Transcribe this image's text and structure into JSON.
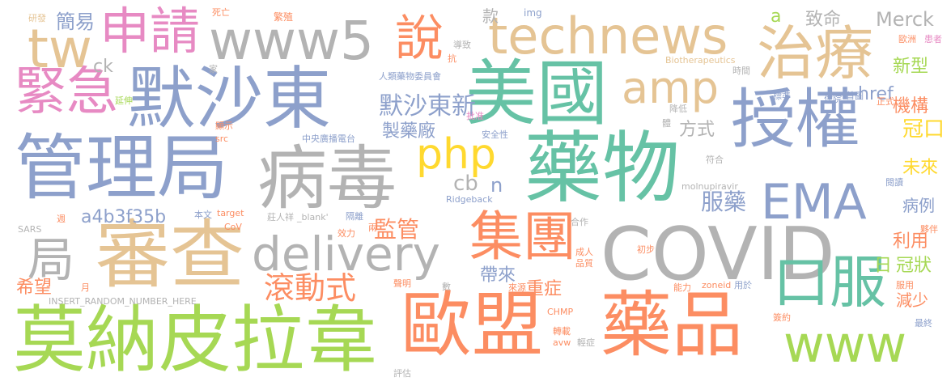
{
  "palette": {
    "green": "#66c2a5",
    "orange": "#fc8d62",
    "blue": "#8da0cb",
    "pink": "#e78ac3",
    "lime": "#a6d854",
    "yellow": "#ffd92f",
    "tan": "#e5c494",
    "gray": "#b3b3b3"
  },
  "words": [
    {
      "text": "COVID"
    },
    {
      "text": "藥物"
    },
    {
      "text": "授權"
    },
    {
      "text": "美國"
    },
    {
      "text": "默沙東"
    },
    {
      "text": "管理局"
    },
    {
      "text": "病毒"
    },
    {
      "text": "莫納皮拉韋"
    },
    {
      "text": "歐盟"
    },
    {
      "text": "藥品"
    },
    {
      "text": "審查"
    },
    {
      "text": "technews"
    },
    {
      "text": "www5"
    },
    {
      "text": "集團"
    },
    {
      "text": "口服"
    },
    {
      "text": "delivery"
    },
    {
      "text": "治療"
    },
    {
      "text": "EMA"
    },
    {
      "text": "www"
    },
    {
      "text": "申請"
    },
    {
      "text": "緊急"
    },
    {
      "text": "tw"
    },
    {
      "text": "amp"
    },
    {
      "text": "php"
    },
    {
      "text": "說"
    },
    {
      "text": "局"
    },
    {
      "text": "滾動式"
    },
    {
      "text": "默沙東新"
    },
    {
      "text": "a4b3f35b"
    },
    {
      "text": "服藥"
    },
    {
      "text": "監管"
    },
    {
      "text": "冠口"
    },
    {
      "text": "Merck"
    },
    {
      "text": "製藥廠"
    },
    {
      "text": "簡易"
    },
    {
      "text": "新型"
    },
    {
      "text": "機構"
    },
    {
      "text": "致命"
    },
    {
      "text": "href"
    },
    {
      "text": "方式"
    },
    {
      "text": "未來"
    },
    {
      "text": "病例"
    },
    {
      "text": "利用"
    },
    {
      "text": "冠狀"
    },
    {
      "text": "日"
    },
    {
      "text": "減少"
    },
    {
      "text": "重症"
    },
    {
      "text": "帶來"
    },
    {
      "text": "希望"
    },
    {
      "text": "cb"
    },
    {
      "text": "n"
    },
    {
      "text": "款"
    },
    {
      "text": "a"
    },
    {
      "text": "ck"
    },
    {
      "text": "img"
    },
    {
      "text": "研發"
    },
    {
      "text": "死亡"
    },
    {
      "text": "繁殖"
    },
    {
      "text": "導致"
    },
    {
      "text": "抗"
    },
    {
      "text": "家"
    },
    {
      "text": "延伸"
    },
    {
      "text": "人類藥物委員會"
    },
    {
      "text": "Biotherapeutics"
    },
    {
      "text": "時間"
    },
    {
      "text": "歐洲"
    },
    {
      "text": "患者"
    },
    {
      "text": "標準"
    },
    {
      "text": "住院"
    },
    {
      "text": "首圖"
    },
    {
      "text": "正式"
    },
    {
      "text": "降低"
    },
    {
      "text": "批准"
    },
    {
      "text": "顯示"
    },
    {
      "text": "安全性"
    },
    {
      "text": "中央廣播電台"
    },
    {
      "text": "src"
    },
    {
      "text": "體"
    },
    {
      "text": "符合"
    },
    {
      "text": "molnupiravir"
    },
    {
      "text": "閱讀"
    },
    {
      "text": "Ridgeback"
    },
    {
      "text": "週"
    },
    {
      "text": "本文"
    },
    {
      "text": "target"
    },
    {
      "text": "莊人祥"
    },
    {
      "text": "_blank'"
    },
    {
      "text": "隔離"
    },
    {
      "text": "SARS"
    },
    {
      "text": "CoV"
    },
    {
      "text": "效力"
    },
    {
      "text": "兩"
    },
    {
      "text": "合作"
    },
    {
      "text": "夥伴"
    },
    {
      "text": "初步"
    },
    {
      "text": "成人"
    },
    {
      "text": "品質"
    },
    {
      "text": "聲明"
    },
    {
      "text": "數"
    },
    {
      "text": "來源"
    },
    {
      "text": "能力"
    },
    {
      "text": "zoneid"
    },
    {
      "text": "用於"
    },
    {
      "text": "服用"
    },
    {
      "text": "月"
    },
    {
      "text": "INSERT_RANDOM_NUMBER_HERE"
    },
    {
      "text": "CHMP"
    },
    {
      "text": "轉載"
    },
    {
      "text": "輕症"
    },
    {
      "text": "avw"
    },
    {
      "text": "簽約"
    },
    {
      "text": "最終"
    },
    {
      "text": "評估"
    }
  ]
}
